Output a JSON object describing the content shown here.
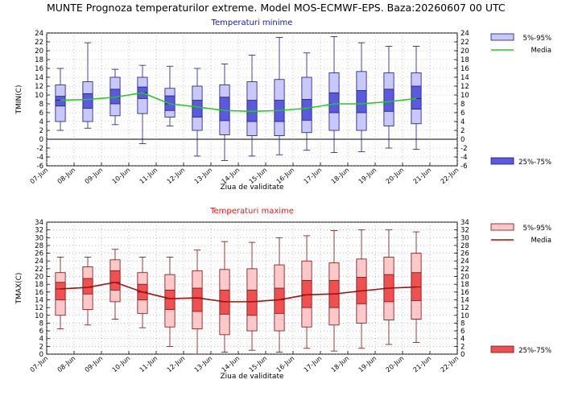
{
  "header": {
    "title": "MUNTE  Prognoza temperaturilor extreme.  Model MOS-ECMWF-EPS. Baza:20260607 00 UTC"
  },
  "chart_data": [
    {
      "type": "box",
      "title": "Temperaturi minime",
      "title_color": "#1a1aa6",
      "ylabel": "TMIN(C)",
      "xlabel": "Ziua de validitate",
      "ylim": [
        -6,
        24
      ],
      "yticks": [
        -6,
        -4,
        -2,
        0,
        2,
        4,
        6,
        8,
        10,
        12,
        14,
        16,
        18,
        20,
        22,
        24
      ],
      "x_ticks": [
        "07-Jun",
        "08-Jun",
        "09-Jun",
        "10-Jun",
        "11-Jun",
        "12-Jun",
        "13-Jun",
        "14-Jun",
        "15-Jun",
        "16-Jun",
        "17-Jun",
        "18-Jun",
        "19-Jun",
        "20-Jun",
        "21-Jun",
        "22-Jun"
      ],
      "colors": {
        "outer_fill": "#c8c8ff",
        "inner_fill": "#5a5ae0",
        "stroke": "#1a1a70",
        "median_line": "#22cc22"
      },
      "legend": {
        "range_outer": "5%-95%",
        "median": "Media",
        "range_inner": "25%-75%"
      },
      "boxes": [
        {
          "min": 2.0,
          "p5": 4.0,
          "p25": 7.5,
          "median": 8.8,
          "p75": 9.7,
          "p95": 12.3,
          "max": 16.0
        },
        {
          "min": 2.5,
          "p5": 4.0,
          "p25": 7.0,
          "median": 9.0,
          "p75": 10.3,
          "p95": 13.0,
          "max": 21.8
        },
        {
          "min": 3.3,
          "p5": 5.3,
          "p25": 8.0,
          "median": 9.5,
          "p75": 11.3,
          "p95": 14.0,
          "max": 15.8
        },
        {
          "min": -1.0,
          "p5": 5.8,
          "p25": 9.2,
          "median": 10.5,
          "p75": 11.8,
          "p95": 14.0,
          "max": 16.7
        },
        {
          "min": 3.0,
          "p5": 5.0,
          "p25": 6.5,
          "median": 8.0,
          "p75": 9.8,
          "p95": 11.5,
          "max": 16.5
        },
        {
          "min": -3.8,
          "p5": 2.0,
          "p25": 5.0,
          "median": 7.3,
          "p75": 8.8,
          "p95": 12.0,
          "max": 16.0
        },
        {
          "min": -4.8,
          "p5": 1.0,
          "p25": 4.2,
          "median": 6.5,
          "p75": 9.5,
          "p95": 12.3,
          "max": 17.0
        },
        {
          "min": -3.8,
          "p5": 0.8,
          "p25": 4.0,
          "median": 6.3,
          "p75": 8.8,
          "p95": 13.0,
          "max": 19.0
        },
        {
          "min": -3.5,
          "p5": 0.8,
          "p25": 4.0,
          "median": 6.5,
          "p75": 8.8,
          "p95": 13.5,
          "max": 23.0
        },
        {
          "min": -2.5,
          "p5": 1.5,
          "p25": 4.3,
          "median": 7.0,
          "p75": 9.0,
          "p95": 14.0,
          "max": 19.5
        },
        {
          "min": -3.0,
          "p5": 2.0,
          "p25": 6.0,
          "median": 8.0,
          "p75": 10.5,
          "p95": 15.0,
          "max": 23.2
        },
        {
          "min": -2.8,
          "p5": 2.0,
          "p25": 6.0,
          "median": 8.0,
          "p75": 11.0,
          "p95": 15.3,
          "max": 21.8
        },
        {
          "min": -2.0,
          "p5": 3.0,
          "p25": 6.3,
          "median": 8.5,
          "p75": 11.3,
          "p95": 15.0,
          "max": 21.0
        },
        {
          "min": -2.3,
          "p5": 3.5,
          "p25": 6.8,
          "median": 9.2,
          "p75": 12.0,
          "p95": 15.0,
          "max": 21.0
        }
      ]
    },
    {
      "type": "box",
      "title": "Temperaturi maxime",
      "title_color": "#e02020",
      "ylabel": "TMAX(C)",
      "xlabel": "Ziua de validitate",
      "ylim": [
        0,
        34
      ],
      "yticks": [
        0,
        2,
        4,
        6,
        8,
        10,
        12,
        14,
        16,
        18,
        20,
        22,
        24,
        26,
        28,
        30,
        32,
        34
      ],
      "x_ticks": [
        "07-Jun",
        "08-Jun",
        "09-Jun",
        "10-Jun",
        "11-Jun",
        "12-Jun",
        "13-Jun",
        "14-Jun",
        "15-Jun",
        "16-Jun",
        "17-Jun",
        "18-Jun",
        "19-Jun",
        "20-Jun",
        "21-Jun",
        "22-Jun"
      ],
      "colors": {
        "outer_fill": "#ffc8c8",
        "inner_fill": "#f05050",
        "stroke": "#701010",
        "median_line": "#a01010"
      },
      "legend": {
        "range_outer": "5%-95%",
        "median": "Media",
        "range_inner": "25%-75%"
      },
      "boxes": [
        {
          "min": 6.5,
          "p5": 10.0,
          "p25": 14.0,
          "median": 16.8,
          "p75": 18.5,
          "p95": 21.0,
          "max": 25.0
        },
        {
          "min": 7.5,
          "p5": 11.5,
          "p25": 15.5,
          "median": 17.2,
          "p75": 19.5,
          "p95": 22.5,
          "max": 25.0
        },
        {
          "min": 9.0,
          "p5": 13.5,
          "p25": 16.5,
          "median": 18.5,
          "p75": 21.5,
          "p95": 24.3,
          "max": 27.0
        },
        {
          "min": 6.8,
          "p5": 10.5,
          "p25": 14.0,
          "median": 16.0,
          "p75": 18.0,
          "p95": 21.0,
          "max": 25.0
        },
        {
          "min": 2.0,
          "p5": 7.0,
          "p25": 11.5,
          "median": 14.3,
          "p75": 16.5,
          "p95": 20.5,
          "max": 25.0
        },
        {
          "min": 0.0,
          "p5": 6.5,
          "p25": 11.0,
          "median": 14.5,
          "p75": 17.0,
          "p95": 21.5,
          "max": 26.8
        },
        {
          "min": 0.5,
          "p5": 5.0,
          "p25": 10.3,
          "median": 13.5,
          "p75": 16.5,
          "p95": 21.8,
          "max": 29.0
        },
        {
          "min": 1.0,
          "p5": 6.0,
          "p25": 10.0,
          "median": 13.5,
          "p75": 16.5,
          "p95": 22.0,
          "max": 28.8
        },
        {
          "min": 0.5,
          "p5": 6.0,
          "p25": 10.5,
          "median": 14.0,
          "p75": 17.0,
          "p95": 23.0,
          "max": 30.0
        },
        {
          "min": 1.5,
          "p5": 7.0,
          "p25": 12.0,
          "median": 15.3,
          "p75": 19.0,
          "p95": 24.0,
          "max": 30.5
        },
        {
          "min": 0.8,
          "p5": 7.5,
          "p25": 12.0,
          "median": 15.5,
          "p75": 19.0,
          "p95": 23.5,
          "max": 31.8
        },
        {
          "min": 1.5,
          "p5": 8.0,
          "p25": 13.0,
          "median": 16.3,
          "p75": 19.8,
          "p95": 24.5,
          "max": 32.0
        },
        {
          "min": 2.5,
          "p5": 8.8,
          "p25": 13.5,
          "median": 17.0,
          "p75": 20.5,
          "p95": 25.0,
          "max": 32.0
        },
        {
          "min": 3.0,
          "p5": 9.0,
          "p25": 13.8,
          "median": 17.3,
          "p75": 21.0,
          "p95": 26.0,
          "max": 31.5
        }
      ]
    }
  ]
}
